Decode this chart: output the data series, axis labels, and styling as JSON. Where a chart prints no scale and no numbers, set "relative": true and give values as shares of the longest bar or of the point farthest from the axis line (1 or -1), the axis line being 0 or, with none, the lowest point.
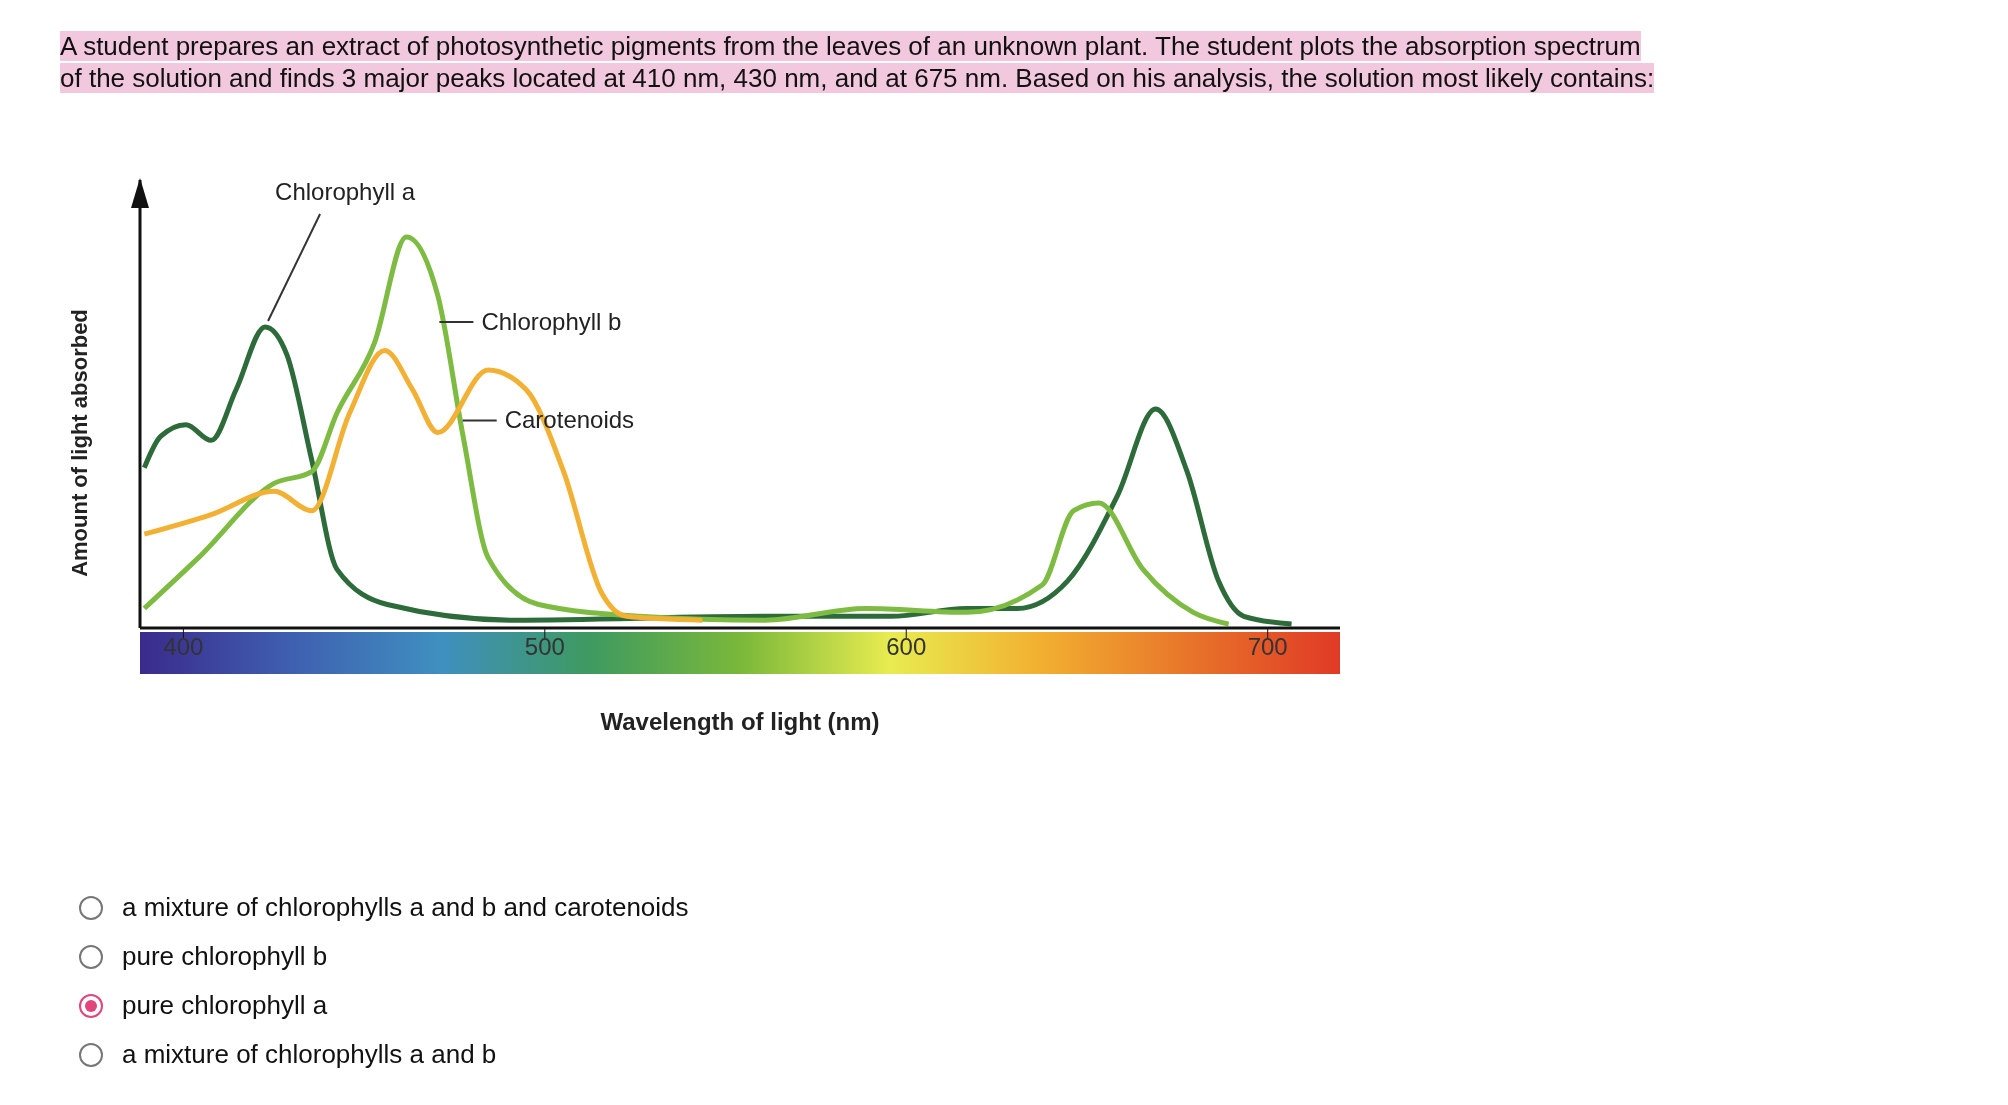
{
  "chart_data": {
    "type": "line",
    "title": "A student prepares an extract of photosynthetic pigments from the leaves of an unknown plant. The student plots the absorption spectrum of the solution and finds 3 major peaks located at 410 nm, 430 nm, and at 675 nm. Based on his analysis, the solution most likely contains:",
    "xlabel": "Wavelength of light (nm)",
    "ylabel": "Amount of light absorbed",
    "relative": true,
    "tick_labels": "x",
    "marker": "none",
    "xlim": [
      388,
      720
    ],
    "xticks": [
      400,
      500,
      600,
      700
    ],
    "series": [
      {
        "name": "Chlorophyll a",
        "color": "#2e6b3a",
        "x": [
          389.2,
          393.7,
          400.7,
          407.7,
          414.6,
          422.6,
          428.6,
          435.5,
          442.5,
          456.4,
          491.3,
          561,
          595.8,
          616.7,
          630.7,
          644.6,
          658.5,
          669,
          677.7,
          686.4,
          693.4,
          706.6
        ],
        "values": [
          0.41,
          0.49,
          0.52,
          0.48,
          0.61,
          0.77,
          0.7,
          0.43,
          0.15,
          0.06,
          0.02,
          0.03,
          0.03,
          0.05,
          0.05,
          0.12,
          0.34,
          0.56,
          0.4,
          0.12,
          0.03,
          0.01
        ]
      },
      {
        "name": "Chlorophyll b",
        "color": "#7dbb42",
        "x": [
          389.2,
          404.2,
          425.1,
          435.5,
          442.5,
          452.9,
          461.7,
          470.4,
          477.4,
          484.3,
          498.3,
          526.1,
          561,
          588.9,
          616.7,
          637.6,
          646.3,
          653.3,
          665.5,
          679.4,
          689.2
        ],
        "values": [
          0.05,
          0.18,
          0.37,
          0.4,
          0.55,
          0.73,
          1.0,
          0.85,
          0.49,
          0.18,
          0.06,
          0.03,
          0.02,
          0.05,
          0.04,
          0.11,
          0.3,
          0.32,
          0.15,
          0.04,
          0.01
        ]
      },
      {
        "name": "Carotenoids",
        "color": "#f2b134",
        "x": [
          389.2,
          407.7,
          425.1,
          435.5,
          446,
          455.7,
          463.4,
          470.4,
          484.3,
          494.8,
          505.2,
          515.7,
          522.6,
          543.6
        ],
        "values": [
          0.24,
          0.29,
          0.35,
          0.3,
          0.55,
          0.71,
          0.61,
          0.5,
          0.66,
          0.61,
          0.4,
          0.09,
          0.03,
          0.02
        ]
      }
    ],
    "annotations": [
      "a mixture of chlorophylls a and b and carotenoids",
      "pure chlorophyll b",
      "pure chlorophyll a",
      "a mixture of chlorophylls a and b"
    ]
  }
}
